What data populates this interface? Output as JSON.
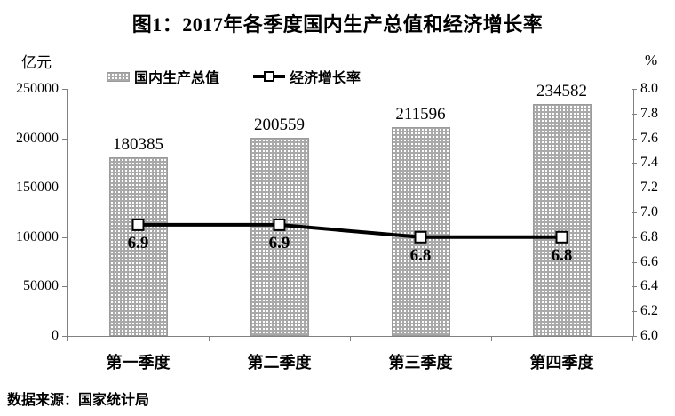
{
  "title": "图1：2017年各季度国内生产总值和经济增长率",
  "source_note": "数据来源：国家统计局",
  "chart_data": {
    "type": "combo-bar-line",
    "categories": [
      "第一季度",
      "第二季度",
      "第三季度",
      "第四季度"
    ],
    "series": [
      {
        "name": "国内生产总值",
        "type": "bar",
        "axis": "left",
        "values": [
          180385,
          200559,
          211596,
          234582
        ],
        "color": "#a9a9a9",
        "pattern": "white-dot-fill"
      },
      {
        "name": "经济增长率",
        "type": "line",
        "axis": "right",
        "values": [
          6.9,
          6.9,
          6.8,
          6.8
        ],
        "color": "#000000",
        "marker": "open-square",
        "marker_fill": "#ffffff"
      }
    ],
    "left_axis": {
      "title": "亿元",
      "min": 0,
      "max": 250000,
      "step": 50000
    },
    "right_axis": {
      "title": "%",
      "min": 6.0,
      "max": 8.0,
      "step": 0.2
    },
    "legend_position": "top",
    "grid": false,
    "colors": {
      "axis_line": "#808080",
      "text": "#000000",
      "bar_fill": "#a9a9a9",
      "bar_border": "#9b9b9b",
      "line": "#000000",
      "marker_fill": "#ffffff"
    }
  }
}
